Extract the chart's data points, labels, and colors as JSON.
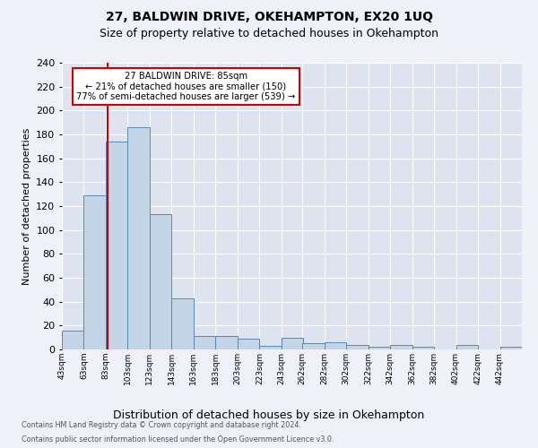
{
  "title1": "27, BALDWIN DRIVE, OKEHAMPTON, EX20 1UQ",
  "title2": "Size of property relative to detached houses in Okehampton",
  "xlabel": "Distribution of detached houses by size in Okehampton",
  "ylabel": "Number of detached properties",
  "bin_labels": [
    "43sqm",
    "63sqm",
    "83sqm",
    "103sqm",
    "123sqm",
    "143sqm",
    "163sqm",
    "183sqm",
    "203sqm",
    "223sqm",
    "243sqm",
    "262sqm",
    "282sqm",
    "302sqm",
    "322sqm",
    "342sqm",
    "362sqm",
    "382sqm",
    "402sqm",
    "422sqm",
    "442sqm"
  ],
  "bin_edges": [
    43,
    63,
    83,
    103,
    123,
    143,
    163,
    183,
    203,
    223,
    243,
    262,
    282,
    302,
    322,
    342,
    362,
    382,
    402,
    422,
    442
  ],
  "bar_heights": [
    16,
    129,
    174,
    186,
    113,
    43,
    11,
    11,
    9,
    3,
    10,
    5,
    6,
    4,
    2,
    4,
    2,
    0,
    4,
    0,
    2
  ],
  "bar_color": "#c5d5e8",
  "bar_edge_color": "#5588bb",
  "bg_color": "#dde4ef",
  "grid_color": "#ffffff",
  "vline_x": 85,
  "vline_color": "#cc0000",
  "annotation_title": "27 BALDWIN DRIVE: 85sqm",
  "annotation_line1": "← 21% of detached houses are smaller (150)",
  "annotation_line2": "77% of semi-detached houses are larger (539) →",
  "annotation_box_color": "#cc0000",
  "ylim": [
    0,
    240
  ],
  "yticks": [
    0,
    20,
    40,
    60,
    80,
    100,
    120,
    140,
    160,
    180,
    200,
    220,
    240
  ],
  "footnote1": "Contains HM Land Registry data © Crown copyright and database right 2024.",
  "footnote2": "Contains public sector information licensed under the Open Government Licence v3.0.",
  "fig_bg": "#eef1f7"
}
